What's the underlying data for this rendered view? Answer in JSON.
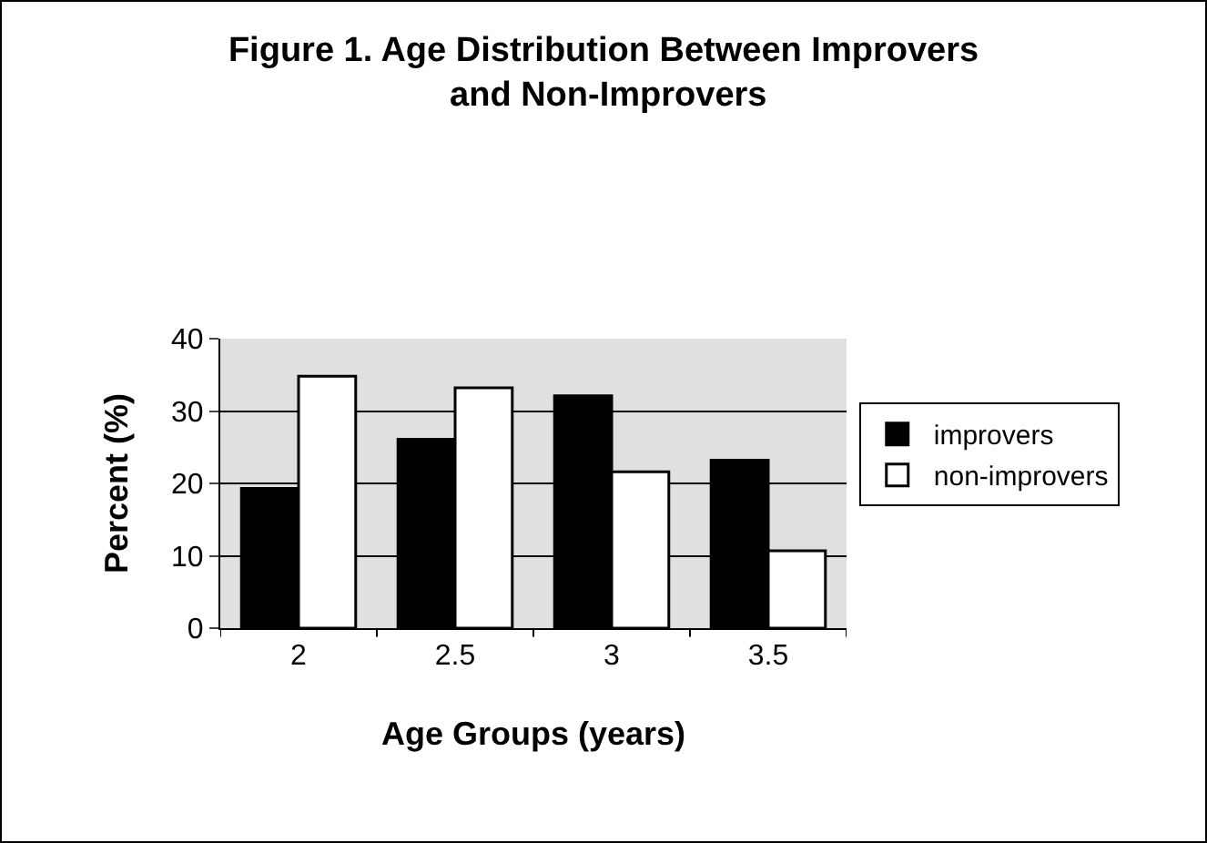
{
  "chart_data": {
    "type": "bar",
    "title": "Figure 1. Age Distribution Between Improvers and Non-Improvers",
    "xlabel": "Age Groups (years)",
    "ylabel": "Percent (%)",
    "categories": [
      "2",
      "2.5",
      "3",
      "3.5"
    ],
    "series": [
      {
        "name": "improvers",
        "color": "#000000",
        "values": [
          19.3,
          26.1,
          32.1,
          23.2
        ]
      },
      {
        "name": "non-improvers",
        "color": "#ffffff",
        "values": [
          34.8,
          33.2,
          21.6,
          10.7
        ]
      }
    ],
    "ylim": [
      0,
      40
    ],
    "yticks": [
      0,
      10,
      20,
      30,
      40
    ],
    "grid": "y",
    "legend": "right"
  }
}
